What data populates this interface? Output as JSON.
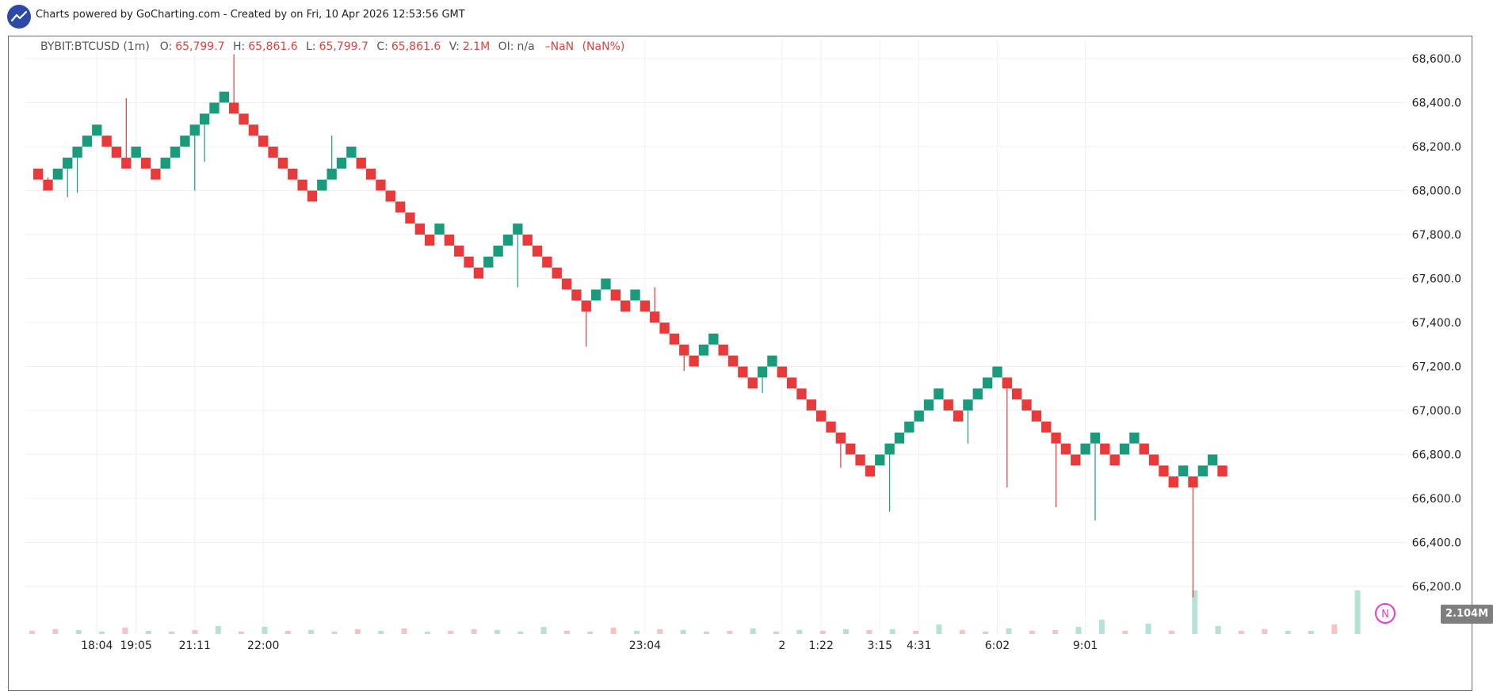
{
  "header": {
    "credit": "Charts powered by GoCharting.com - Created by  on Fri, 10 Apr 2026 12:53:56 GMT"
  },
  "legend": {
    "symbol": "BYBIT:BTCUSD (1m)",
    "o_label": "O:",
    "o": "65,799.7",
    "h_label": "H:",
    "h": "65,861.6",
    "l_label": "L:",
    "l": "65,799.7",
    "c_label": "C:",
    "c": "65,861.6",
    "v_label": "V:",
    "v": "2.1M",
    "oi_label": "OI:",
    "oi": "n/a",
    "change": "–NaN",
    "change_pct": "(NaN%)"
  },
  "volume_badge": "2.104M",
  "n_badge": "N",
  "colors": {
    "up": "#1a9c7c",
    "down": "#e8393b",
    "vol_up": "#b6e1d6",
    "vol_down": "#f7c3c2"
  },
  "chart_data": {
    "type": "renko",
    "brick_size": 50,
    "start_bottom": 68050,
    "directions": [
      -1,
      -1,
      1,
      1,
      1,
      1,
      1,
      -1,
      -1,
      -1,
      1,
      -1,
      -1,
      1,
      1,
      1,
      1,
      1,
      1,
      1,
      -1,
      -1,
      -1,
      -1,
      -1,
      -1,
      -1,
      -1,
      -1,
      1,
      1,
      1,
      1,
      -1,
      -1,
      -1,
      -1,
      -1,
      -1,
      -1,
      -1,
      1,
      -1,
      -1,
      -1,
      -1,
      1,
      1,
      1,
      1,
      -1,
      -1,
      -1,
      -1,
      -1,
      -1,
      -1,
      1,
      1,
      -1,
      -1,
      1,
      -1,
      -1,
      -1,
      -1,
      -1,
      -1,
      1,
      1,
      -1,
      -1,
      -1,
      -1,
      1,
      1,
      -1,
      -1,
      -1,
      -1,
      -1,
      -1,
      -1,
      -1,
      -1,
      -1,
      1,
      1,
      1,
      1,
      1,
      1,
      1,
      -1,
      -1,
      1,
      1,
      1,
      1,
      -1,
      -1,
      -1,
      -1,
      -1,
      -1,
      -1,
      -1,
      1,
      1,
      -1,
      -1,
      1,
      1,
      -1,
      -1,
      -1,
      -1,
      1,
      -1,
      1,
      1,
      -1
    ],
    "wicks": [
      [
        1,
        68060
      ],
      [
        3,
        67970
      ],
      [
        4,
        67990
      ],
      [
        9,
        68420
      ],
      [
        16,
        68000
      ],
      [
        17,
        68130
      ],
      [
        20,
        68620
      ],
      [
        30,
        68250
      ],
      [
        34,
        68080
      ],
      [
        44,
        67660
      ],
      [
        49,
        67560
      ],
      [
        56,
        67290
      ],
      [
        63,
        67560
      ],
      [
        66,
        67180
      ],
      [
        72,
        67200
      ],
      [
        74,
        67080
      ],
      [
        80,
        67000
      ],
      [
        82,
        66740
      ],
      [
        87,
        66540
      ],
      [
        95,
        66850
      ],
      [
        99,
        66650
      ],
      [
        104,
        66560
      ],
      [
        108,
        66500
      ],
      [
        118,
        66150
      ]
    ],
    "volume": {
      "up": [
        0,
        0,
        1,
        1,
        0,
        1,
        0,
        0,
        1,
        0,
        1,
        0,
        1,
        1,
        0,
        1,
        0,
        1,
        0,
        0,
        1,
        1,
        1,
        0,
        1,
        0,
        1,
        0,
        1,
        1,
        0,
        1,
        0,
        1,
        0,
        1,
        0,
        1,
        0,
        1,
        0,
        0,
        1,
        0,
        0,
        1,
        1,
        0,
        1,
        0,
        1,
        1,
        0,
        0,
        1,
        1,
        0,
        1
      ],
      "heights": [
        4,
        6,
        5,
        3,
        8,
        4,
        3,
        5,
        10,
        3,
        9,
        4,
        5,
        3,
        6,
        4,
        7,
        3,
        4,
        6,
        5,
        3,
        9,
        4,
        3,
        8,
        4,
        6,
        5,
        3,
        4,
        7,
        3,
        5,
        4,
        6,
        5,
        6,
        4,
        12,
        5,
        3,
        7,
        4,
        5,
        9,
        18,
        4,
        13,
        4,
        55,
        10,
        4,
        6,
        4,
        4,
        12,
        55
      ]
    },
    "ytick_labels": [
      "68,600.0",
      "68,400.0",
      "68,200.0",
      "68,000.0",
      "67,800.0",
      "67,600.0",
      "67,400.0",
      "67,200.0",
      "67,000.0",
      "66,800.0",
      "66,600.0",
      "66,400.0",
      "66,200.0"
    ],
    "ytick_values": [
      68600,
      68400,
      68200,
      68000,
      67800,
      67600,
      67400,
      67200,
      67000,
      66800,
      66600,
      66400,
      66200
    ],
    "ylim": [
      66020,
      68650
    ],
    "xtick_labels": [
      "18:04",
      "19:05",
      "21:11",
      "22:00",
      "23:04",
      "2",
      "1:22",
      "3:15",
      "4:31",
      "6:02",
      "9:01"
    ],
    "xtick_positions": [
      6,
      10,
      16,
      23,
      62,
      76,
      80,
      86,
      90,
      98,
      107
    ]
  }
}
